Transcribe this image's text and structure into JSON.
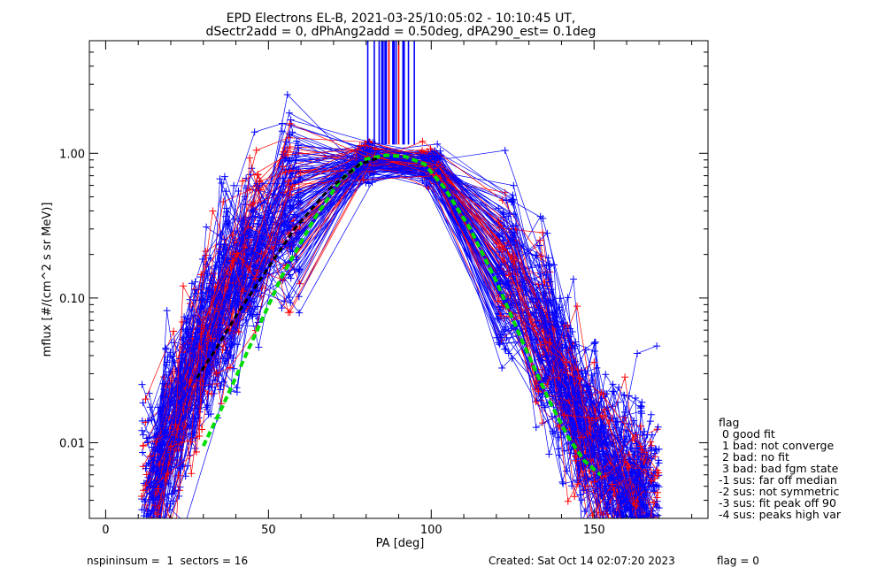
{
  "chart_data": {
    "type": "line",
    "title": "EPD Electrons EL-B, 2021-03-25/10:05:02 - 10:10:45 UT,",
    "subtitle": "dSectr2add = 0, dPhAng2add = 0.50deg, dPA290_est=   0.1deg",
    "xlabel": "PA [deg]",
    "ylabel": "mflux [#/(cm^2 s sr MeV)]",
    "xlim": [
      -5,
      185
    ],
    "ylim": [
      0.003,
      6.0
    ],
    "yscale": "log",
    "x_ticks": [
      0,
      50,
      100,
      150
    ],
    "y_ticks": [
      {
        "value": 0.01,
        "label": "0.01"
      },
      {
        "value": 0.1,
        "label": "0.10"
      },
      {
        "value": 1.0,
        "label": "1.00"
      }
    ],
    "grid": false,
    "sector_pa": [
      14,
      20,
      26,
      32,
      38,
      45,
      57,
      80,
      100,
      123,
      135,
      142,
      148,
      155,
      162,
      167
    ],
    "mean_profile": [
      0.0045,
      0.012,
      0.027,
      0.055,
      0.11,
      0.2,
      0.42,
      0.9,
      0.82,
      0.14,
      0.055,
      0.022,
      0.011,
      0.0065,
      0.0048,
      0.0045
    ],
    "fit_curve": {
      "color": "#00dd00",
      "x": [
        30,
        36,
        44,
        54,
        64,
        72,
        80,
        86,
        92,
        98,
        104,
        112,
        120,
        128,
        136,
        142,
        147,
        152
      ],
      "y": [
        0.0095,
        0.018,
        0.045,
        0.14,
        0.35,
        0.65,
        0.91,
        0.97,
        0.95,
        0.84,
        0.58,
        0.3,
        0.13,
        0.05,
        0.02,
        0.011,
        0.0075,
        0.006
      ]
    },
    "median_curve": {
      "color": "#000000",
      "x": [
        28,
        34,
        40,
        48,
        58,
        68,
        78,
        84
      ],
      "y": [
        0.028,
        0.045,
        0.075,
        0.14,
        0.3,
        0.55,
        0.84,
        0.93
      ]
    },
    "peak_lines_pa": [
      80.5,
      82.5,
      84,
      85,
      86,
      87,
      88.4,
      89.2,
      90,
      91.5,
      93,
      94.8
    ],
    "colors": {
      "sus": "#0000ff",
      "bad": "#ff0000",
      "fit": "#00dd00",
      "median": "#000000"
    }
  },
  "legend": {
    "title": "flag",
    "items": [
      " 0 good fit",
      " 1 bad: not converge",
      " 2 bad: no fit",
      " 3 bad: bad fgm state",
      "-1 sus: far off median",
      "-2 sus: not symmetric",
      "-3 sus: fit peak off 90",
      "-4 sus: peaks high var"
    ]
  },
  "footer": {
    "left": "nspininsum =  1  sectors = 16",
    "created": "Created: Sat Oct 14 02:07:20 2023",
    "flag": "flag = 0"
  }
}
